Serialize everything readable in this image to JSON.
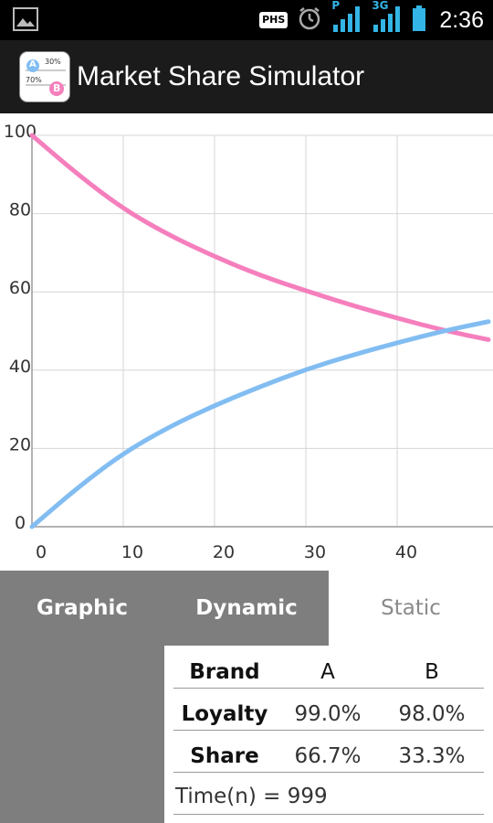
{
  "status_bar": {
    "phs_label": "PHS",
    "network_label": "3G",
    "carrier_letter": "P",
    "time": "2:36",
    "icons": [
      "image-icon",
      "phs-icon",
      "alarm-icon",
      "signal-icon",
      "signal-3g-icon",
      "battery-icon"
    ]
  },
  "app": {
    "title": "Market Share Simulator",
    "icon": {
      "label_a": "A",
      "label_b": "B",
      "pct_a": "30%",
      "pct_b": "70%"
    }
  },
  "chart_data": {
    "type": "line",
    "title": "",
    "xlabel": "",
    "ylabel": "",
    "xlim": [
      0,
      50
    ],
    "ylim": [
      0,
      100
    ],
    "x_ticks": [
      "0",
      "10",
      "20",
      "30",
      "40"
    ],
    "y_ticks": [
      "0",
      "20",
      "40",
      "60",
      "80",
      "100"
    ],
    "grid": true,
    "series": [
      {
        "color": "#f57fbd",
        "x": [
          0,
          5,
          10,
          15,
          20,
          25,
          30,
          35,
          40,
          45,
          50
        ],
        "y": [
          100,
          90,
          81.2,
          74.5,
          69,
          64.2,
          60.3,
          56.6,
          53.3,
          50.2,
          47.8
        ]
      },
      {
        "color": "#82bdf2",
        "x": [
          0,
          5,
          10,
          15,
          20,
          25,
          30,
          35,
          40,
          45,
          50
        ],
        "y": [
          0,
          10,
          18.8,
          25.5,
          31,
          35.8,
          40.2,
          43.8,
          47,
          50,
          52.4
        ]
      }
    ]
  },
  "tabs": [
    {
      "label": "Graphic"
    },
    {
      "label": "Dynamic"
    },
    {
      "label": "Static"
    }
  ],
  "table": {
    "headers": [
      "Brand",
      "A",
      "B"
    ],
    "rows": [
      {
        "label": "Loyalty",
        "a": "99.0%",
        "b": "98.0%"
      },
      {
        "label": "Share",
        "a": "66.7%",
        "b": "33.3%"
      }
    ],
    "time_text": "Time(n) = 999"
  }
}
